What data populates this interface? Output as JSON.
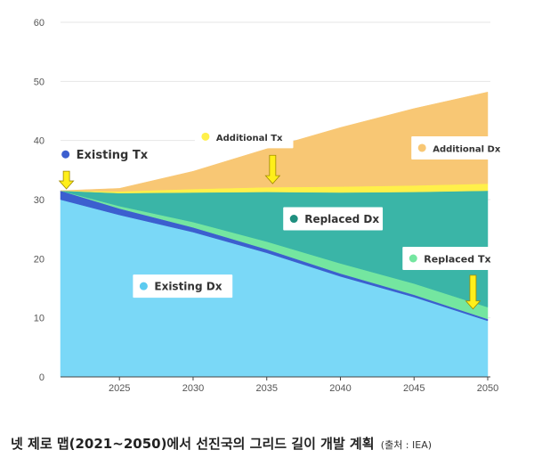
{
  "chart_data": {
    "type": "area",
    "stacked": true,
    "x": [
      2021,
      2025,
      2030,
      2035,
      2040,
      2045,
      2050
    ],
    "xticks": [
      "2025",
      "2030",
      "2035",
      "2040",
      "2045",
      "2050"
    ],
    "yticks": [
      "0",
      "10",
      "20",
      "30",
      "40",
      "50",
      "60"
    ],
    "ylim": [
      0,
      60
    ],
    "xlim": [
      2021,
      2050
    ],
    "grid": true,
    "series": [
      {
        "name": "Existing Dx",
        "color": "#7ad8f7",
        "values": [
          30,
          27.4,
          24.5,
          21,
          17,
          13.5,
          9.5
        ]
      },
      {
        "name": "Existing Tx",
        "color": "#3c5fcf",
        "values": [
          1.5,
          1.1,
          0.8,
          0.6,
          0.5,
          0.4,
          0.3
        ]
      },
      {
        "name": "Replaced Tx",
        "color": "#74e6a0",
        "values": [
          0,
          0.4,
          0.9,
          1.3,
          1.7,
          1.9,
          2.0
        ]
      },
      {
        "name": "Replaced Dx",
        "color": "#3ab5a7",
        "values": [
          0,
          2.2,
          5.0,
          8.4,
          12.0,
          15.5,
          19.7
        ]
      },
      {
        "name": "Additional Tx",
        "color": "#fff04a",
        "values": [
          0,
          0.3,
          0.6,
          0.8,
          1.0,
          1.1,
          1.2
        ]
      },
      {
        "name": "Additional Dx",
        "color": "#f8c774",
        "values": [
          0,
          0.5,
          3.0,
          6.5,
          10.0,
          13.0,
          15.5
        ]
      }
    ],
    "legend_labels": [
      {
        "name": "Existing Tx",
        "dot": "#3c5fcf"
      },
      {
        "name": "Additional Tx",
        "dot": "#fff04a"
      },
      {
        "name": "Additional Dx",
        "dot": "#f8c774"
      },
      {
        "name": "Replaced Dx",
        "dot": "#1f8f7f"
      },
      {
        "name": "Replaced Tx",
        "dot": "#74e6a0"
      },
      {
        "name": "Existing Dx",
        "dot": "#5ccbf0"
      }
    ],
    "annotations": "yellow downward arrows at 2021, 2035 and 2049"
  },
  "caption": {
    "title": "넷 제로 맵(2021~2050)에서 선진국의 그리드 길이 개발 계획",
    "source": "(출처 : IEA)"
  }
}
